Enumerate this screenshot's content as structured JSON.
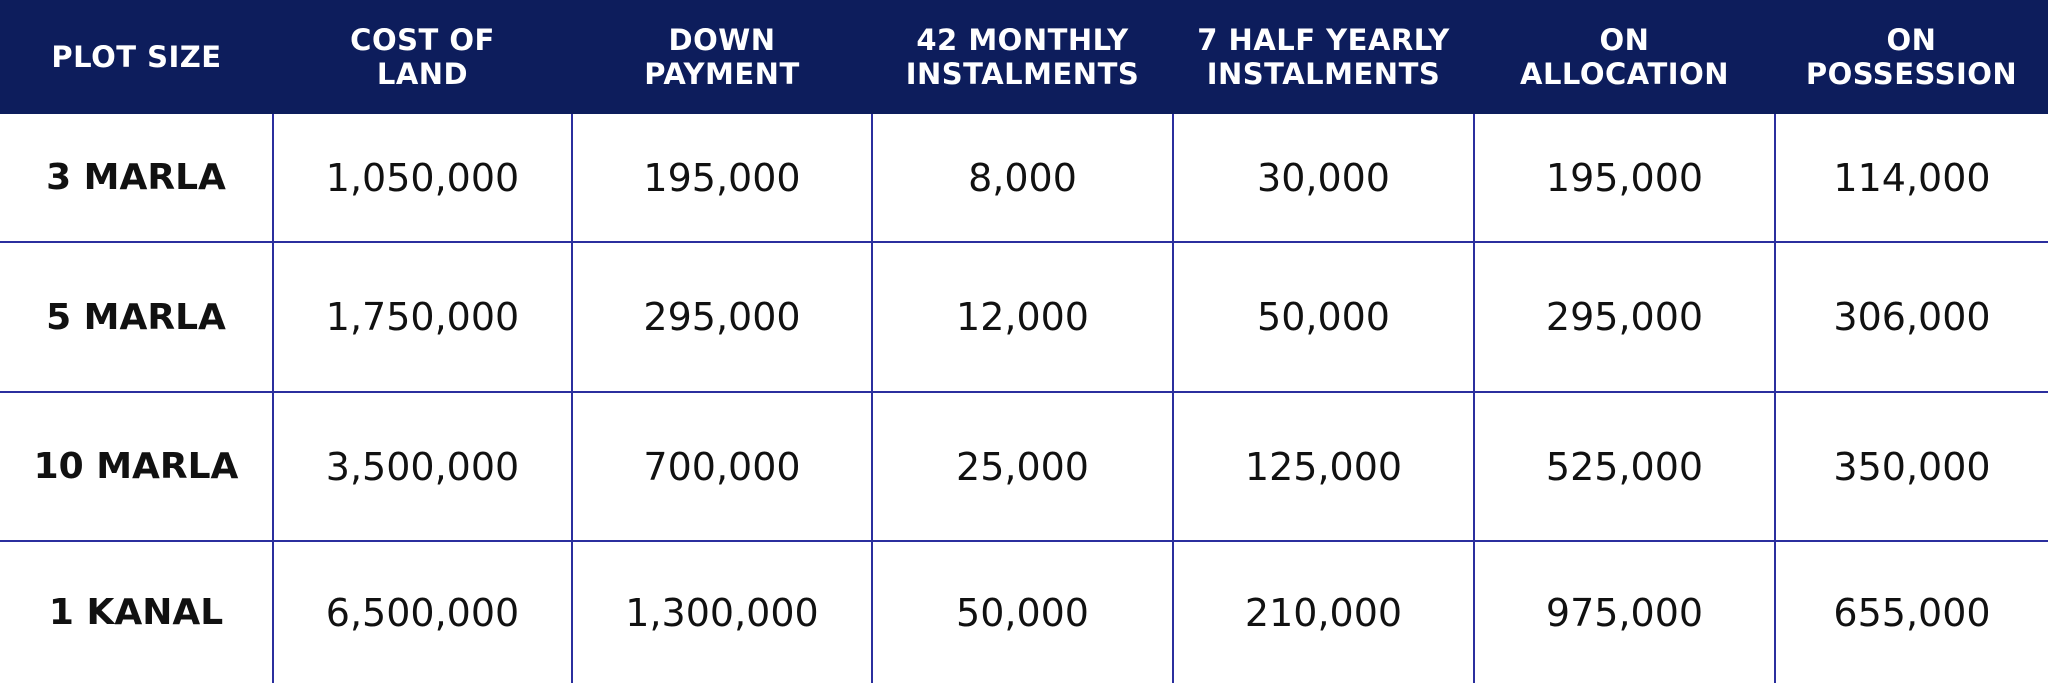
{
  "headers": [
    "PLOT SIZE",
    "COST OF\nLAND",
    "DOWN\nPAYMENT",
    "42 MONTHLY\nINSTALMENTS",
    "7 HALF YEARLY\nINSTALMENTS",
    "ON\nALLOCATION",
    "ON\nPOSSESSION"
  ],
  "rows": [
    [
      "3 MARLA",
      "1,050,000",
      "195,000",
      "8,000",
      "30,000",
      "195,000",
      "114,000"
    ],
    [
      "5 MARLA",
      "1,750,000",
      "295,000",
      "12,000",
      "50,000",
      "295,000",
      "306,000"
    ],
    [
      "10 MARLA",
      "3,500,000",
      "700,000",
      "25,000",
      "125,000",
      "525,000",
      "350,000"
    ],
    [
      "1 KANAL",
      "6,500,000",
      "1,300,000",
      "50,000",
      "210,000",
      "975,000",
      "655,000"
    ]
  ],
  "colors": {
    "header_bg": "#0d1d5c",
    "grid": "#2b2f9e"
  }
}
